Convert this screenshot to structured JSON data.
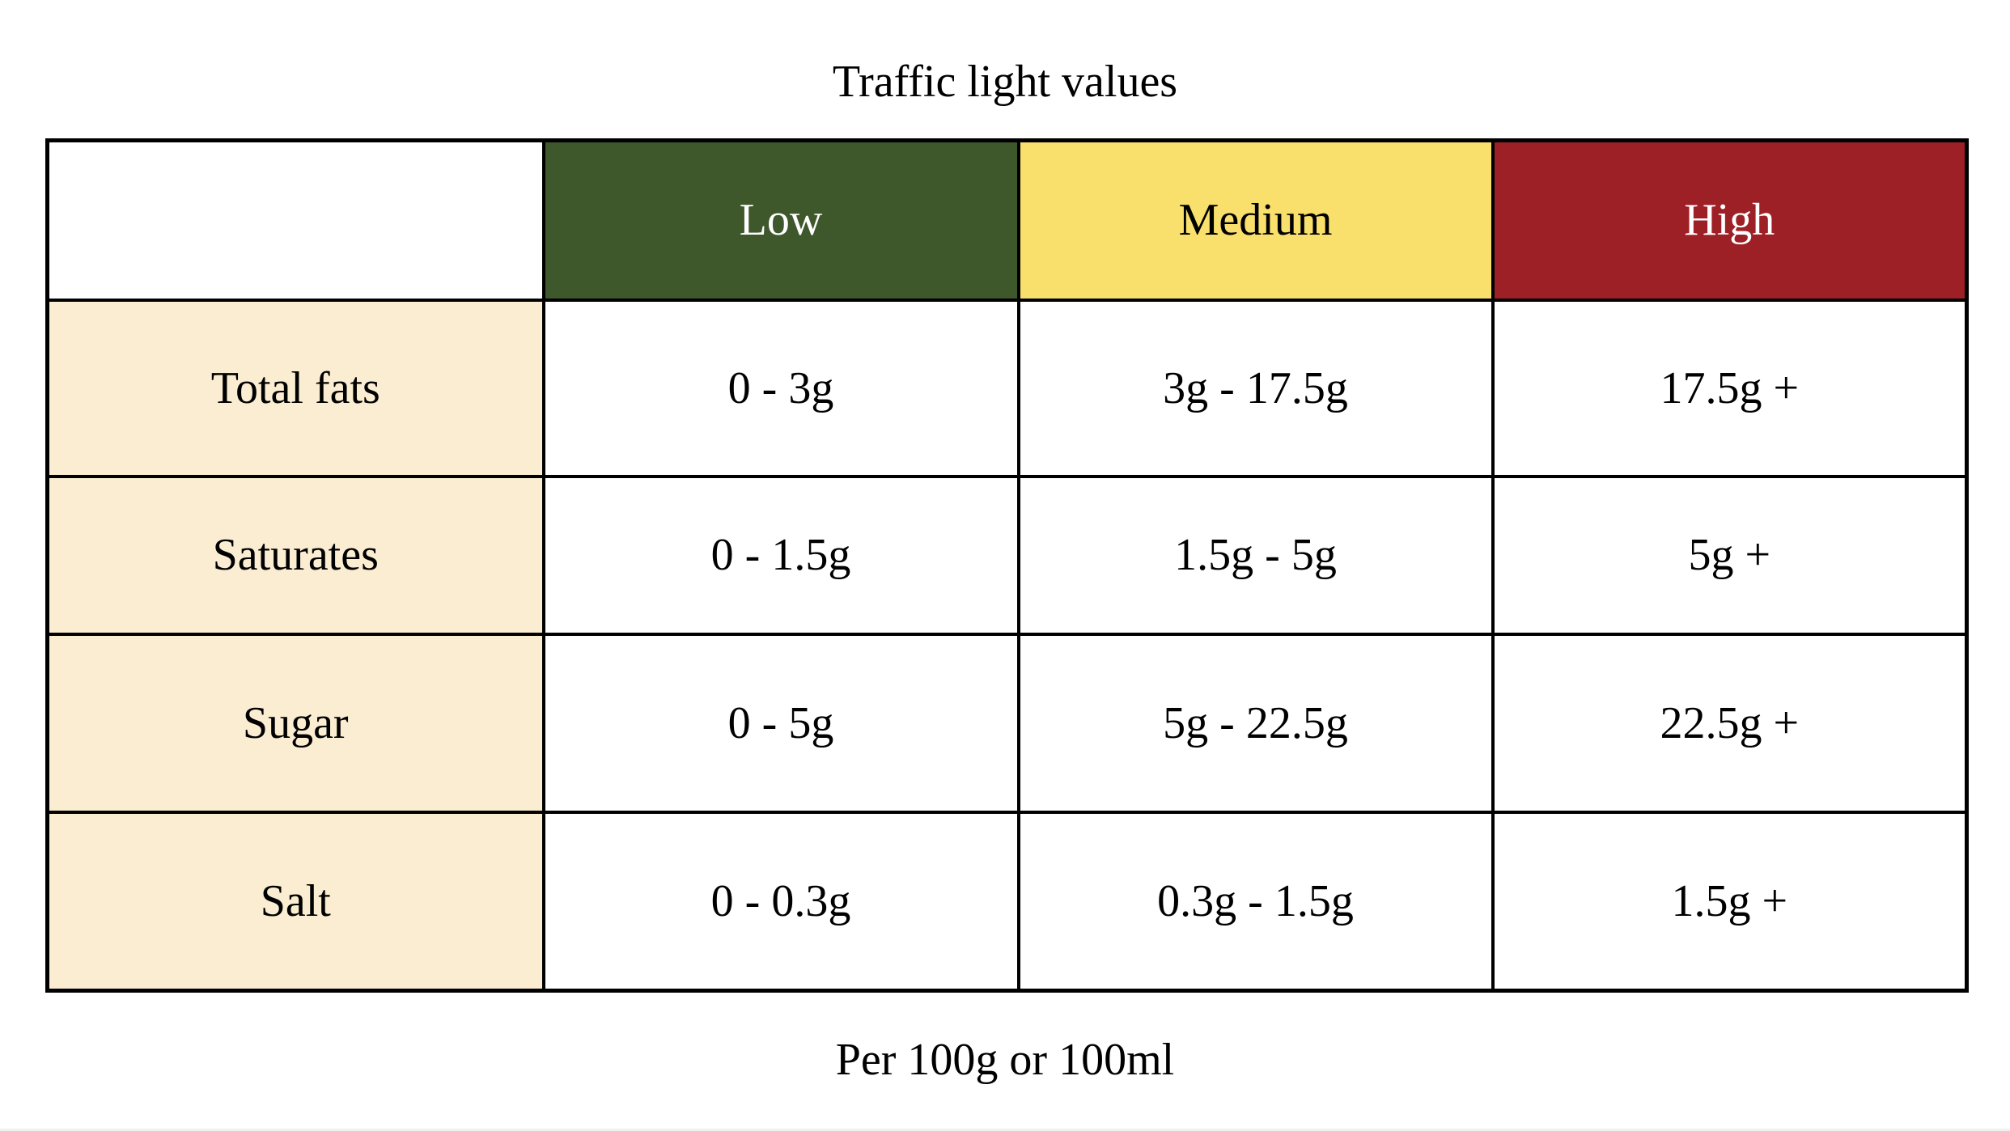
{
  "title": "Traffic light values",
  "footer": "Per 100g or 100ml",
  "table": {
    "corner": "",
    "columns": [
      {
        "label": "Low",
        "bg": "#3E572B",
        "color": "#FFFFFF"
      },
      {
        "label": "Medium",
        "bg": "#F9DF6B",
        "color": "#000000"
      },
      {
        "label": "High",
        "bg": "#9E2027",
        "color": "#FFFFFF"
      }
    ],
    "rows": [
      {
        "label": "Total fats",
        "low": "0 - 3g",
        "medium": "3g - 17.5g",
        "high": "17.5g +"
      },
      {
        "label": "Saturates",
        "low": "0 - 1.5g",
        "medium": "1.5g - 5g",
        "high": "5g +"
      },
      {
        "label": "Sugar",
        "low": "0 - 5g",
        "medium": "5g - 22.5g",
        "high": "22.5g +"
      },
      {
        "label": "Salt",
        "low": "0 - 0.3g",
        "medium": "0.3g - 1.5g",
        "high": "1.5g +"
      }
    ]
  },
  "colors": {
    "row_label_bg": "#FBEDD2",
    "border": "#000000"
  }
}
